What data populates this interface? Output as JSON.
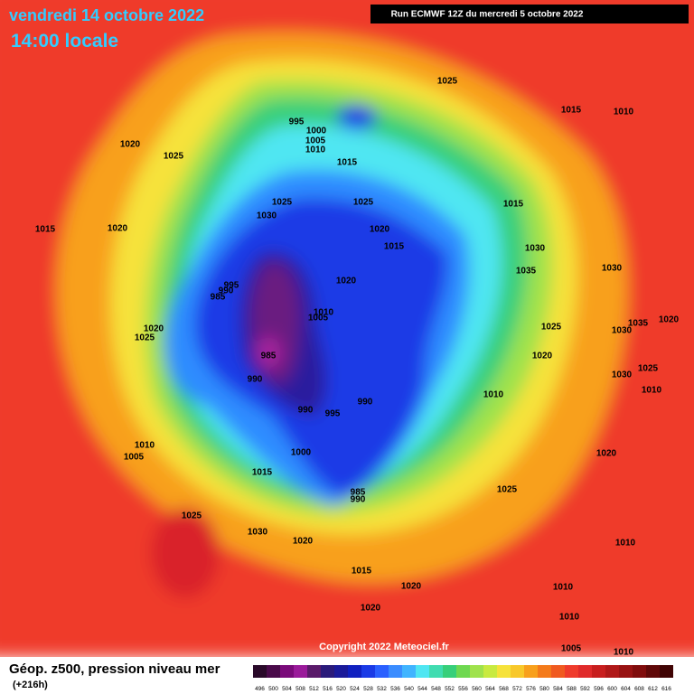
{
  "header": {
    "date": "vendredi 14 octobre 2022",
    "time": "14:00 locale",
    "run": "Run ECMWF 12Z du mercredi 5 octobre 2022"
  },
  "footer": {
    "copyright": "Copyright 2022 Meteociel.fr",
    "title": "Géop. z500, pression niveau mer",
    "lead": "(+216h)"
  },
  "legend": {
    "ticks": [
      "496",
      "500",
      "504",
      "508",
      "512",
      "516",
      "520",
      "524",
      "528",
      "532",
      "536",
      "540",
      "544",
      "548",
      "552",
      "556",
      "560",
      "564",
      "568",
      "572",
      "576",
      "580",
      "584",
      "588",
      "592",
      "596",
      "600",
      "604",
      "608",
      "612",
      "616"
    ],
    "colors": [
      "#2a0a2a",
      "#4a0a4a",
      "#7a0a7a",
      "#9a1a9a",
      "#5a1a6a",
      "#2a1a7a",
      "#1a1a9a",
      "#1020c0",
      "#1a3ae6",
      "#2a60ff",
      "#3a8cff",
      "#40b4ff",
      "#4fe6f2",
      "#40dcb0",
      "#37cf7a",
      "#6ed850",
      "#9fe24c",
      "#c8ea40",
      "#f6e23a",
      "#f8c82a",
      "#f8a01c",
      "#f47a1a",
      "#f05a20",
      "#ef3b2c",
      "#e02a2a",
      "#c81e1e",
      "#b01818",
      "#981212",
      "#800c0c",
      "#600808",
      "#400404"
    ]
  },
  "isobar_labels": [
    "1025",
    "1015",
    "1010",
    "995",
    "1000",
    "1005",
    "1010",
    "1020",
    "1025",
    "1015",
    "1025",
    "1025",
    "1015",
    "1030",
    "1020",
    "1015",
    "1020",
    "1015",
    "1030",
    "1035",
    "1030",
    "1020",
    "995",
    "990",
    "985",
    "1010",
    "1005",
    "1035",
    "1020",
    "1030",
    "1020",
    "1025",
    "1025",
    "1020",
    "1025",
    "1030",
    "985",
    "990",
    "990",
    "1010",
    "1010",
    "990",
    "995",
    "1010",
    "1005",
    "1000",
    "1020",
    "1015",
    "985",
    "990",
    "1025",
    "1025",
    "1030",
    "1020",
    "1010",
    "1015",
    "1020",
    "1010",
    "1010",
    "1020",
    "1005",
    "1010"
  ]
}
